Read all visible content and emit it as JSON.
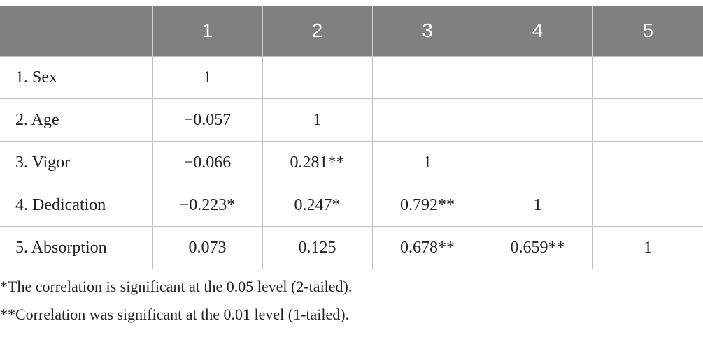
{
  "table": {
    "columns": [
      "1",
      "2",
      "3",
      "4",
      "5"
    ],
    "rows": [
      {
        "label": "1. Sex",
        "values": [
          "1"
        ]
      },
      {
        "label": "2. Age",
        "values": [
          "−0.057",
          "1"
        ]
      },
      {
        "label": "3. Vigor",
        "values": [
          "−0.066",
          "0.281**",
          "1"
        ]
      },
      {
        "label": "4. Dedication",
        "values": [
          "−0.223*",
          "0.247*",
          "0.792**",
          "1"
        ]
      },
      {
        "label": "5. Absorption",
        "values": [
          "0.073",
          "0.125",
          "0.678**",
          "0.659**",
          "1"
        ]
      }
    ]
  },
  "footnotes": [
    "*The correlation is significant at the 0.05 level (2-tailed).",
    "**Correlation was significant at the 0.01 level (1-tailed)."
  ]
}
